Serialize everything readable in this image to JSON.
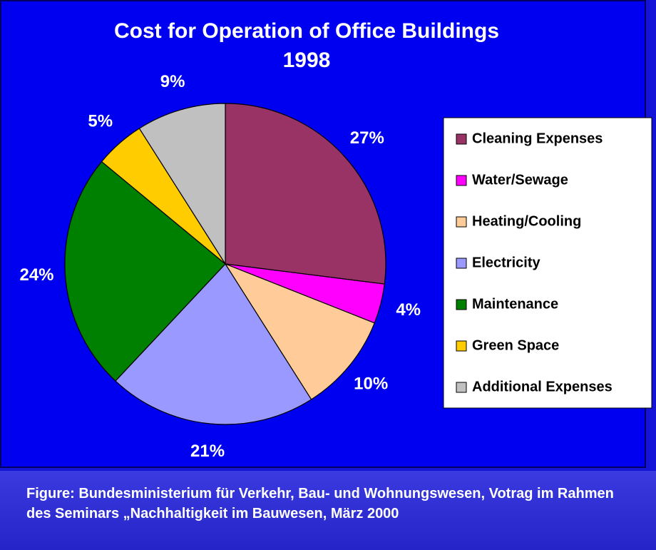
{
  "chart_data": {
    "type": "pie",
    "title": "Cost for Operation of Office Buildings",
    "subtitle": "1998",
    "categories": [
      "Cleaning Expenses",
      "Water/Sewage",
      "Heating/Cooling",
      "Electricity",
      "Maintenance",
      "Green Space",
      "Additional Expenses"
    ],
    "values": [
      27,
      4,
      10,
      21,
      24,
      5,
      9
    ],
    "value_labels": [
      "27%",
      "4%",
      "10%",
      "21%",
      "24%",
      "5%",
      "9%"
    ],
    "colors": [
      "#993366",
      "#ff00ff",
      "#ffcc99",
      "#9999ff",
      "#008000",
      "#ffcc00",
      "#c0c0c0"
    ],
    "legend": "right",
    "caption": "Figure: Bundesministerium für Verkehr, Bau- und Wohnungswesen, Votrag im Rahmen des Seminars „Nachhaltigkeit im Bauwesen, März 2000"
  }
}
